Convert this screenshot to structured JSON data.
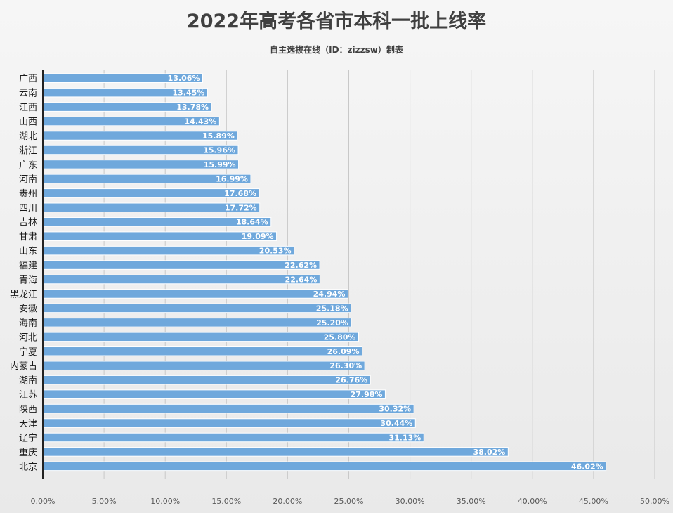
{
  "chart_data": {
    "type": "bar",
    "orientation": "horizontal",
    "title": "2022年高考各省市本科一批上线率",
    "subtitle": "自主选拔在线（ID：zizzsw）制表",
    "categories": [
      "广西",
      "云南",
      "江西",
      "山西",
      "湖北",
      "浙江",
      "广东",
      "河南",
      "贵州",
      "四川",
      "吉林",
      "甘肃",
      "山东",
      "福建",
      "青海",
      "黑龙江",
      "安徽",
      "海南",
      "河北",
      "宁夏",
      "内蒙古",
      "湖南",
      "江苏",
      "陕西",
      "天津",
      "辽宁",
      "重庆",
      "北京"
    ],
    "values": [
      13.06,
      13.45,
      13.78,
      14.43,
      15.89,
      15.96,
      15.99,
      16.99,
      17.68,
      17.72,
      18.64,
      19.09,
      20.53,
      22.62,
      22.64,
      24.94,
      25.18,
      25.2,
      25.8,
      26.09,
      26.3,
      26.76,
      27.98,
      30.32,
      30.44,
      31.13,
      38.02,
      46.02
    ],
    "data_labels": [
      "13.06%",
      "13.45%",
      "13.78%",
      "14.43%",
      "15.89%",
      "15.96%",
      "15.99%",
      "16.99%",
      "17.68%",
      "17.72%",
      "18.64%",
      "19.09%",
      "20.53%",
      "22.62%",
      "22.64%",
      "24.94%",
      "25.18%",
      "25.20%",
      "25.80%",
      "26.09%",
      "26.30%",
      "26.76%",
      "27.98%",
      "30.32%",
      "30.44%",
      "31.13%",
      "38.02%",
      "46.02%"
    ],
    "x_ticks": [
      "0.00%",
      "5.00%",
      "10.00%",
      "15.00%",
      "20.00%",
      "25.00%",
      "30.00%",
      "35.00%",
      "40.00%",
      "45.00%",
      "50.00%"
    ],
    "xlim": [
      0,
      50
    ],
    "xlabel": "",
    "ylabel": "",
    "grid": "vertical",
    "bar_color": "#6fa8dc"
  }
}
